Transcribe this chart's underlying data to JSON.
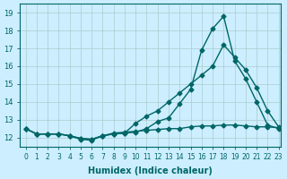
{
  "xlabel": "Humidex (Indice chaleur)",
  "ylabel": "",
  "background_color": "#cceeff",
  "line_color": "#006666",
  "grid_color": "#aacccc",
  "xlim": [
    0,
    23
  ],
  "ylim": [
    11.5,
    19.5
  ],
  "xticks": [
    0,
    1,
    2,
    3,
    4,
    5,
    6,
    7,
    8,
    9,
    10,
    11,
    12,
    13,
    14,
    15,
    16,
    17,
    18,
    19,
    20,
    21,
    22,
    23
  ],
  "yticks": [
    12,
    13,
    14,
    15,
    16,
    17,
    18,
    19
  ],
  "line1_x": [
    0,
    1,
    2,
    3,
    4,
    5,
    6,
    7,
    8,
    9,
    10,
    11,
    12,
    13,
    14,
    15,
    16,
    17,
    18,
    19,
    20,
    21,
    22,
    23
  ],
  "line1_y": [
    12.5,
    12.2,
    12.2,
    12.2,
    12.1,
    11.9,
    11.85,
    12.1,
    12.2,
    12.25,
    12.3,
    12.5,
    12.9,
    13.1,
    13.9,
    14.7,
    16.9,
    18.1,
    18.8,
    16.3,
    15.3,
    14.0,
    12.7,
    12.5
  ],
  "line2_x": [
    0,
    1,
    2,
    3,
    4,
    5,
    6,
    7,
    8,
    9,
    10,
    11,
    12,
    13,
    14,
    15,
    16,
    17,
    18,
    19,
    20,
    21,
    22,
    23
  ],
  "line2_y": [
    12.5,
    12.2,
    12.2,
    12.2,
    12.1,
    11.95,
    11.9,
    12.1,
    12.2,
    12.25,
    12.8,
    13.2,
    13.5,
    14.0,
    14.5,
    15.0,
    15.5,
    16.0,
    17.2,
    16.5,
    15.8,
    14.8,
    13.5,
    12.6
  ],
  "line3_x": [
    0,
    1,
    2,
    3,
    4,
    5,
    6,
    7,
    8,
    9,
    10,
    11,
    12,
    13,
    14,
    15,
    16,
    17,
    18,
    19,
    20,
    21,
    22,
    23
  ],
  "line3_y": [
    12.5,
    12.2,
    12.2,
    12.2,
    12.1,
    11.95,
    11.9,
    12.1,
    12.25,
    12.3,
    12.35,
    12.4,
    12.45,
    12.5,
    12.5,
    12.6,
    12.65,
    12.65,
    12.7,
    12.7,
    12.65,
    12.6,
    12.6,
    12.55
  ]
}
